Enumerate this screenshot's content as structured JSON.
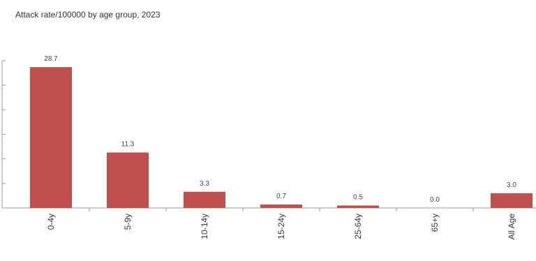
{
  "chart_data": {
    "type": "bar",
    "title": "Attack rate/100000 by age group, 2023",
    "categories": [
      "0-4y",
      "5-9y",
      "10-14y",
      "15-24y",
      "25-64y",
      "65+y",
      "All Age"
    ],
    "values": [
      28.7,
      11.3,
      3.3,
      0.7,
      0.5,
      0.0,
      3.0
    ],
    "data_labels": [
      "28.7",
      "11.3",
      "3.3",
      "0.7",
      "0.5",
      "0.0",
      "3.0"
    ],
    "ylim": [
      0,
      30
    ],
    "grid": false,
    "bar_color": "#c0504d"
  }
}
